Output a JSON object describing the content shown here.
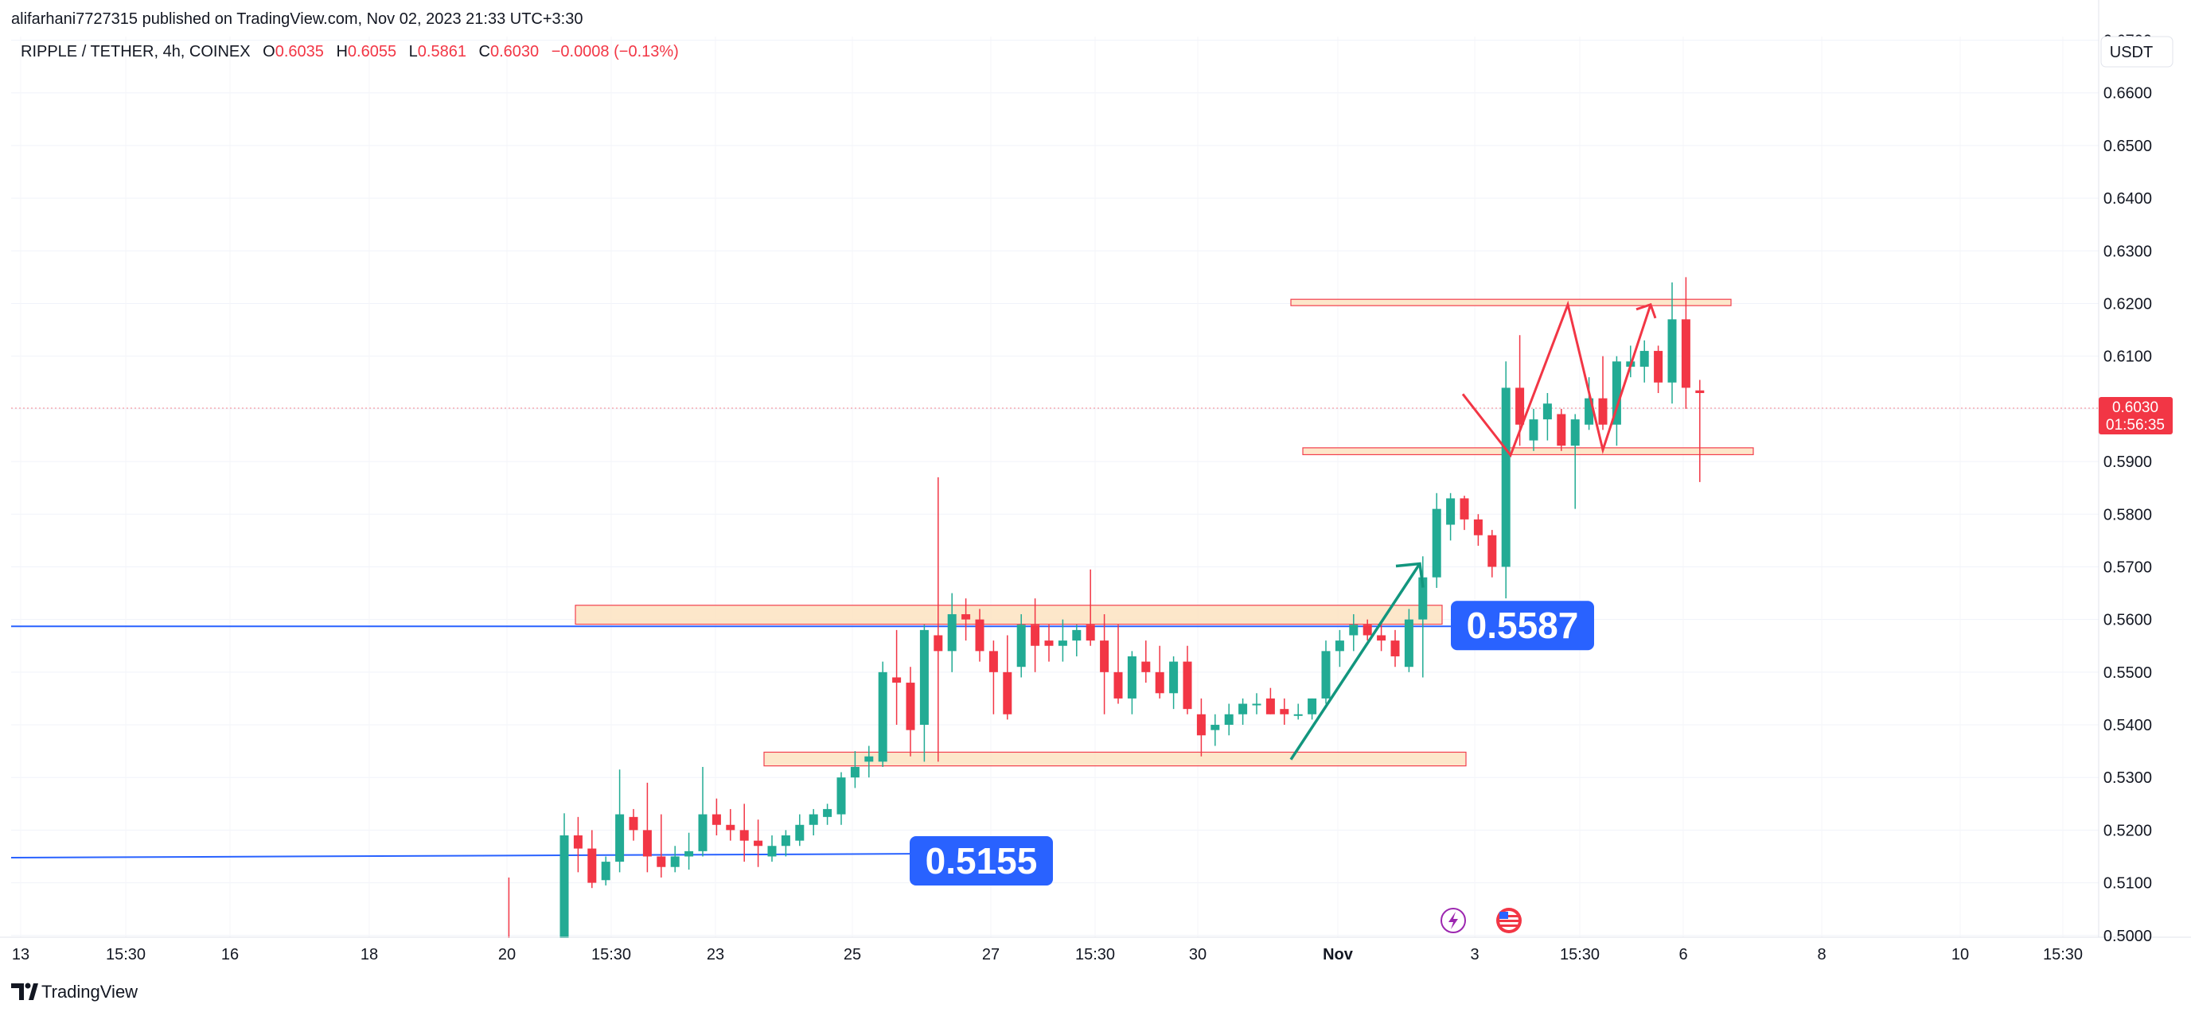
{
  "header": {
    "published": "alifarhani7727315 published on TradingView.com, Nov 02, 2023 21:33 UTC+3:30",
    "symbol": "RIPPLE / TETHER, 4h, COINEX",
    "o_label": "O",
    "o_value": "0.6035",
    "h_label": "H",
    "h_value": "0.6055",
    "l_label": "L",
    "l_value": "0.5861",
    "c_label": "C",
    "c_value": "0.6030",
    "change": "−0.0008 (−0.13%)"
  },
  "currency": "USDT",
  "last_price": {
    "value": "0.6030",
    "countdown": "01:56:35"
  },
  "footer": {
    "logo_text": "TradingView"
  },
  "colors": {
    "up": "#22ab94",
    "down": "#f23645",
    "zone_fill": "#fde6c8",
    "zone_stroke": "#f23645",
    "level_line": "#2962ff",
    "badge": "#2962ff",
    "arrow_green": "#12967e",
    "path_red": "#f23645"
  },
  "chart_data": {
    "type": "candlestick",
    "symbol": "RIPPLE / TETHER",
    "interval": "4h",
    "exchange": "COINEX",
    "quote_currency": "USDT",
    "ylim": [
      0.4977,
      0.6725
    ],
    "y_ticks": [
      "0.5000",
      "0.5100",
      "0.5200",
      "0.5300",
      "0.5400",
      "0.5500",
      "0.5600",
      "0.5700",
      "0.5800",
      "0.5900",
      "0.6000",
      "0.6100",
      "0.6200",
      "0.6300",
      "0.6400",
      "0.6500",
      "0.6600",
      "0.6700"
    ],
    "x_ticks": [
      "13",
      "15:30",
      "16",
      "18",
      "20",
      "15:30",
      "23",
      "25",
      "27",
      "15:30",
      "30",
      "Nov",
      "3",
      "15:30",
      "6",
      "8",
      "10",
      "15:30"
    ],
    "grid": true,
    "current_price": 0.603,
    "candles": [
      {
        "o": 0.4975,
        "h": 0.498,
        "l": 0.497,
        "c": 0.4978
      },
      {
        "o": 0.4977,
        "h": 0.511,
        "l": 0.497,
        "c": 0.4975
      },
      {
        "o": 0.4976,
        "h": 0.4985,
        "l": 0.497,
        "c": 0.4978
      },
      {
        "o": 0.4978,
        "h": 0.499,
        "l": 0.497,
        "c": 0.4977
      },
      {
        "o": 0.4976,
        "h": 0.498,
        "l": 0.497,
        "c": 0.4975
      },
      {
        "o": 0.499,
        "h": 0.5232,
        "l": 0.4975,
        "c": 0.519
      },
      {
        "o": 0.519,
        "h": 0.5225,
        "l": 0.512,
        "c": 0.5165
      },
      {
        "o": 0.5165,
        "h": 0.52,
        "l": 0.509,
        "c": 0.51
      },
      {
        "o": 0.5105,
        "h": 0.515,
        "l": 0.5095,
        "c": 0.514
      },
      {
        "o": 0.514,
        "h": 0.5315,
        "l": 0.512,
        "c": 0.523
      },
      {
        "o": 0.5225,
        "h": 0.524,
        "l": 0.518,
        "c": 0.52
      },
      {
        "o": 0.52,
        "h": 0.529,
        "l": 0.512,
        "c": 0.515
      },
      {
        "o": 0.515,
        "h": 0.523,
        "l": 0.511,
        "c": 0.513
      },
      {
        "o": 0.513,
        "h": 0.517,
        "l": 0.512,
        "c": 0.515
      },
      {
        "o": 0.515,
        "h": 0.5195,
        "l": 0.5125,
        "c": 0.516
      },
      {
        "o": 0.516,
        "h": 0.532,
        "l": 0.515,
        "c": 0.523
      },
      {
        "o": 0.523,
        "h": 0.526,
        "l": 0.519,
        "c": 0.521
      },
      {
        "o": 0.521,
        "h": 0.524,
        "l": 0.518,
        "c": 0.52
      },
      {
        "o": 0.52,
        "h": 0.525,
        "l": 0.514,
        "c": 0.518
      },
      {
        "o": 0.518,
        "h": 0.522,
        "l": 0.513,
        "c": 0.517
      },
      {
        "o": 0.515,
        "h": 0.519,
        "l": 0.514,
        "c": 0.517
      },
      {
        "o": 0.517,
        "h": 0.52,
        "l": 0.515,
        "c": 0.519
      },
      {
        "o": 0.518,
        "h": 0.523,
        "l": 0.517,
        "c": 0.521
      },
      {
        "o": 0.521,
        "h": 0.524,
        "l": 0.519,
        "c": 0.523
      },
      {
        "o": 0.5225,
        "h": 0.525,
        "l": 0.521,
        "c": 0.524
      },
      {
        "o": 0.523,
        "h": 0.531,
        "l": 0.521,
        "c": 0.53
      },
      {
        "o": 0.53,
        "h": 0.535,
        "l": 0.528,
        "c": 0.532
      },
      {
        "o": 0.533,
        "h": 0.536,
        "l": 0.53,
        "c": 0.534
      },
      {
        "o": 0.533,
        "h": 0.552,
        "l": 0.532,
        "c": 0.55
      },
      {
        "o": 0.549,
        "h": 0.558,
        "l": 0.54,
        "c": 0.548
      },
      {
        "o": 0.548,
        "h": 0.551,
        "l": 0.534,
        "c": 0.539
      },
      {
        "o": 0.54,
        "h": 0.559,
        "l": 0.533,
        "c": 0.558
      },
      {
        "o": 0.557,
        "h": 0.587,
        "l": 0.533,
        "c": 0.554
      },
      {
        "o": 0.554,
        "h": 0.565,
        "l": 0.55,
        "c": 0.561
      },
      {
        "o": 0.561,
        "h": 0.564,
        "l": 0.556,
        "c": 0.56
      },
      {
        "o": 0.56,
        "h": 0.562,
        "l": 0.552,
        "c": 0.554
      },
      {
        "o": 0.554,
        "h": 0.556,
        "l": 0.542,
        "c": 0.55
      },
      {
        "o": 0.55,
        "h": 0.557,
        "l": 0.541,
        "c": 0.542
      },
      {
        "o": 0.551,
        "h": 0.561,
        "l": 0.549,
        "c": 0.559
      },
      {
        "o": 0.559,
        "h": 0.564,
        "l": 0.55,
        "c": 0.555
      },
      {
        "o": 0.556,
        "h": 0.559,
        "l": 0.552,
        "c": 0.555
      },
      {
        "o": 0.555,
        "h": 0.56,
        "l": 0.552,
        "c": 0.556
      },
      {
        "o": 0.556,
        "h": 0.559,
        "l": 0.553,
        "c": 0.558
      },
      {
        "o": 0.559,
        "h": 0.5695,
        "l": 0.555,
        "c": 0.556
      },
      {
        "o": 0.556,
        "h": 0.561,
        "l": 0.542,
        "c": 0.55
      },
      {
        "o": 0.55,
        "h": 0.559,
        "l": 0.544,
        "c": 0.545
      },
      {
        "o": 0.545,
        "h": 0.554,
        "l": 0.542,
        "c": 0.553
      },
      {
        "o": 0.552,
        "h": 0.556,
        "l": 0.548,
        "c": 0.55
      },
      {
        "o": 0.55,
        "h": 0.555,
        "l": 0.545,
        "c": 0.546
      },
      {
        "o": 0.546,
        "h": 0.553,
        "l": 0.543,
        "c": 0.552
      },
      {
        "o": 0.552,
        "h": 0.555,
        "l": 0.542,
        "c": 0.543
      },
      {
        "o": 0.542,
        "h": 0.545,
        "l": 0.534,
        "c": 0.538
      },
      {
        "o": 0.539,
        "h": 0.542,
        "l": 0.536,
        "c": 0.54
      },
      {
        "o": 0.54,
        "h": 0.544,
        "l": 0.538,
        "c": 0.542
      },
      {
        "o": 0.542,
        "h": 0.545,
        "l": 0.54,
        "c": 0.544
      },
      {
        "o": 0.544,
        "h": 0.546,
        "l": 0.542,
        "c": 0.544
      },
      {
        "o": 0.545,
        "h": 0.547,
        "l": 0.542,
        "c": 0.542
      },
      {
        "o": 0.543,
        "h": 0.545,
        "l": 0.54,
        "c": 0.542
      },
      {
        "o": 0.542,
        "h": 0.544,
        "l": 0.541,
        "c": 0.542
      },
      {
        "o": 0.542,
        "h": 0.545,
        "l": 0.541,
        "c": 0.545
      },
      {
        "o": 0.545,
        "h": 0.556,
        "l": 0.544,
        "c": 0.554
      },
      {
        "o": 0.554,
        "h": 0.558,
        "l": 0.551,
        "c": 0.556
      },
      {
        "o": 0.557,
        "h": 0.561,
        "l": 0.554,
        "c": 0.559
      },
      {
        "o": 0.559,
        "h": 0.56,
        "l": 0.556,
        "c": 0.557
      },
      {
        "o": 0.557,
        "h": 0.559,
        "l": 0.554,
        "c": 0.556
      },
      {
        "o": 0.556,
        "h": 0.558,
        "l": 0.551,
        "c": 0.553
      },
      {
        "o": 0.551,
        "h": 0.562,
        "l": 0.55,
        "c": 0.56
      },
      {
        "o": 0.56,
        "h": 0.572,
        "l": 0.549,
        "c": 0.568
      },
      {
        "o": 0.568,
        "h": 0.584,
        "l": 0.566,
        "c": 0.581
      },
      {
        "o": 0.578,
        "h": 0.584,
        "l": 0.575,
        "c": 0.583
      },
      {
        "o": 0.583,
        "h": 0.5835,
        "l": 0.577,
        "c": 0.579
      },
      {
        "o": 0.579,
        "h": 0.58,
        "l": 0.574,
        "c": 0.576
      },
      {
        "o": 0.576,
        "h": 0.577,
        "l": 0.568,
        "c": 0.57
      },
      {
        "o": 0.57,
        "h": 0.609,
        "l": 0.564,
        "c": 0.604
      },
      {
        "o": 0.604,
        "h": 0.614,
        "l": 0.593,
        "c": 0.597
      },
      {
        "o": 0.594,
        "h": 0.6,
        "l": 0.592,
        "c": 0.598
      },
      {
        "o": 0.598,
        "h": 0.603,
        "l": 0.594,
        "c": 0.601
      },
      {
        "o": 0.599,
        "h": 0.6,
        "l": 0.592,
        "c": 0.593
      },
      {
        "o": 0.593,
        "h": 0.599,
        "l": 0.581,
        "c": 0.598
      },
      {
        "o": 0.597,
        "h": 0.606,
        "l": 0.596,
        "c": 0.602
      },
      {
        "o": 0.602,
        "h": 0.61,
        "l": 0.596,
        "c": 0.597
      },
      {
        "o": 0.597,
        "h": 0.61,
        "l": 0.593,
        "c": 0.609
      },
      {
        "o": 0.608,
        "h": 0.612,
        "l": 0.606,
        "c": 0.609
      },
      {
        "o": 0.608,
        "h": 0.613,
        "l": 0.605,
        "c": 0.611
      },
      {
        "o": 0.611,
        "h": 0.612,
        "l": 0.603,
        "c": 0.605
      },
      {
        "o": 0.605,
        "h": 0.624,
        "l": 0.601,
        "c": 0.617
      },
      {
        "o": 0.617,
        "h": 0.625,
        "l": 0.6,
        "c": 0.604
      },
      {
        "o": 0.6035,
        "h": 0.6055,
        "l": 0.5861,
        "c": 0.603
      }
    ],
    "drawings": {
      "zones": [
        {
          "from": 0.5591,
          "to": 0.5627
        },
        {
          "from": 0.5322,
          "to": 0.5348
        },
        {
          "from": 0.6196,
          "to": 0.6208
        },
        {
          "from": 0.5913,
          "to": 0.5926
        }
      ],
      "levels": [
        {
          "value": 0.5587,
          "label": "0.5587"
        },
        {
          "value": 0.5155,
          "label": "0.5155"
        }
      ],
      "projection_path": [
        0.6028,
        0.5912,
        0.6198,
        0.5922,
        0.6198
      ],
      "projection_arrow": {
        "from": 0.5334,
        "to": 0.5706
      }
    },
    "event_icons": [
      "lightning-icon",
      "us-flag-icon"
    ]
  }
}
